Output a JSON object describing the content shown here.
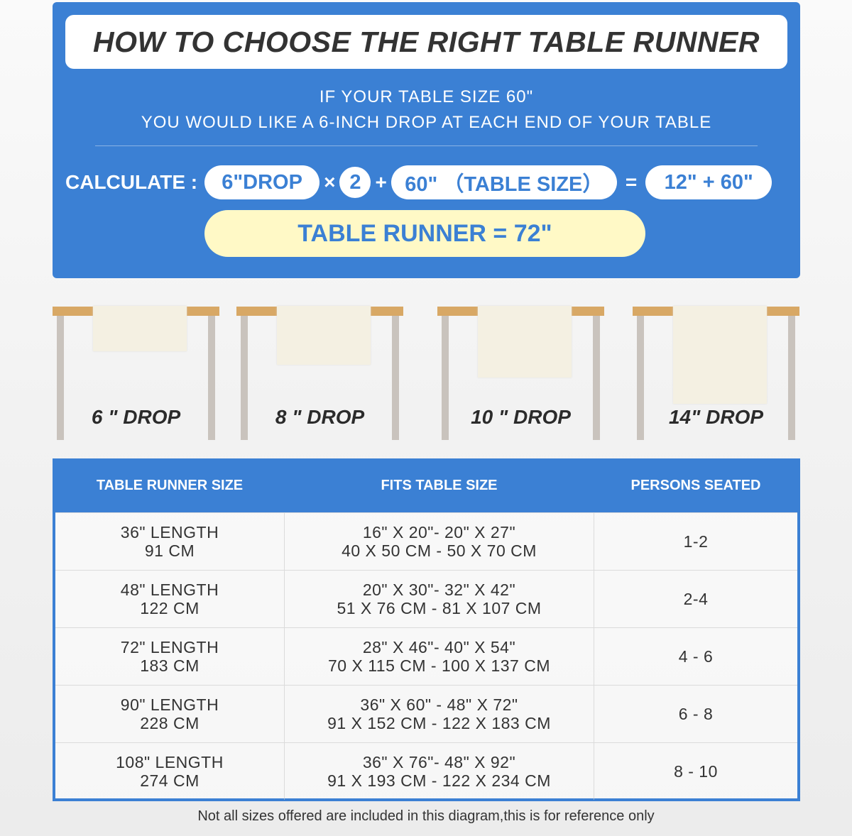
{
  "title": "HOW TO CHOOSE THE RIGHT TABLE RUNNER",
  "subtitle_1": "IF YOUR TABLE SIZE 60\"",
  "subtitle_2": "YOU WOULD LIKE A 6-INCH DROP AT EACH END OF YOUR TABLE",
  "calculate": {
    "label": "CALCULATE :",
    "drop": "6\"DROP",
    "times": "×",
    "multiplier": "2",
    "plus": "+",
    "table_size": "60\" （TABLE SIZE）",
    "equals": "=",
    "sum": "12\" + 60\"",
    "result": "TABLE RUNNER = 72\""
  },
  "drops": [
    {
      "label": "6 \" DROP",
      "inches": 6
    },
    {
      "label": "8 \" DROP",
      "inches": 8
    },
    {
      "label": "10 \" DROP",
      "inches": 10
    },
    {
      "label": "14\" DROP",
      "inches": 14
    }
  ],
  "colors": {
    "blue": "#3b80d4",
    "result_bg": "#fff9c6",
    "table_top": "#d8a865",
    "runner": "#f4f0e2"
  },
  "size_table": {
    "headers": [
      "TABLE RUNNER SIZE",
      "FITS TABLE SIZE",
      "PERSONS SEATED"
    ],
    "rows": [
      {
        "size": [
          "36\" LENGTH",
          "91 CM"
        ],
        "fits": [
          "16\" X 20\"- 20\" X 27\"",
          "40 X 50 CM - 50 X 70 CM"
        ],
        "persons": "1-2"
      },
      {
        "size": [
          "48\" LENGTH",
          "122 CM"
        ],
        "fits": [
          "20\" X 30\"- 32\" X 42\"",
          "51 X 76 CM - 81 X 107 CM"
        ],
        "persons": "2-4"
      },
      {
        "size": [
          "72\" LENGTH",
          "183 CM"
        ],
        "fits": [
          "28\" X 46\"- 40\" X 54\"",
          "70 X 115 CM - 100 X 137 CM"
        ],
        "persons": "4 - 6"
      },
      {
        "size": [
          "90\" LENGTH",
          "228 CM"
        ],
        "fits": [
          "36\" X 60\" - 48\" X 72\"",
          "91 X 152 CM - 122 X 183 CM"
        ],
        "persons": "6 - 8"
      },
      {
        "size": [
          "108\" LENGTH",
          "274 CM"
        ],
        "fits": [
          "36\" X 76\"- 48\" X 92\"",
          "91 X 193 CM - 122 X 234 CM"
        ],
        "persons": "8 - 10"
      }
    ]
  },
  "footnote": "Not all sizes offered are included in this diagram,this is for reference only"
}
